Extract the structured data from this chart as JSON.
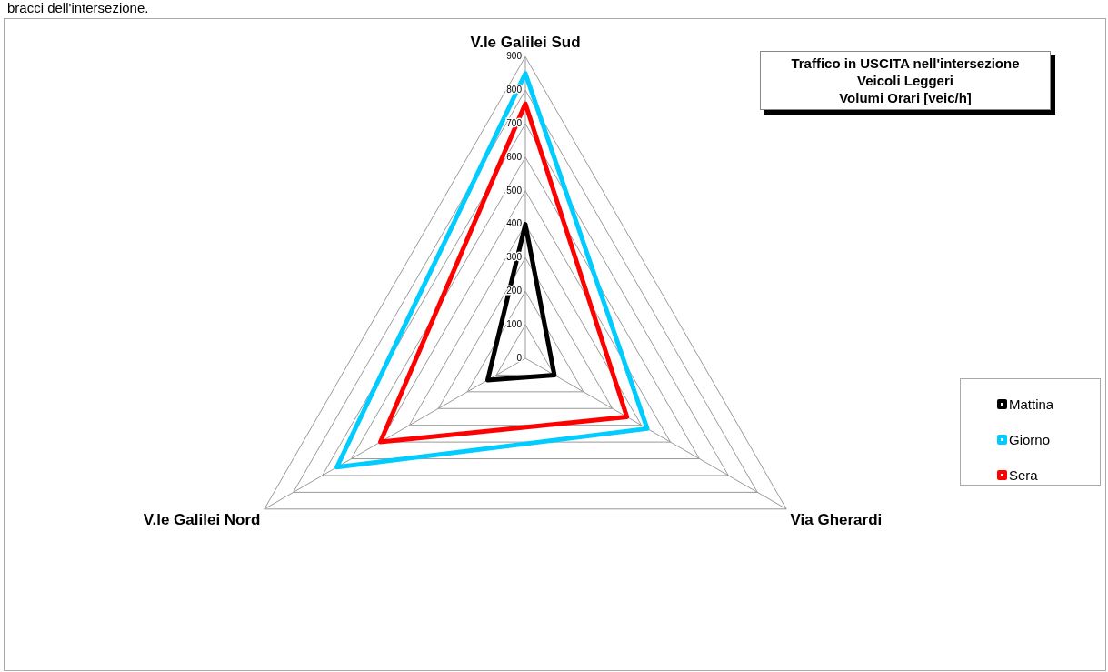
{
  "chart_data": {
    "type": "radar",
    "title": "Traffico in USCITA nell'intersezione\nVeicoli Leggeri\nVolumi Orari [veic/h]",
    "categories": [
      "V.le Galilei Sud",
      "Via Gherardi",
      "V.le Galilei Nord"
    ],
    "series": [
      {
        "name": "Mattina",
        "color": "#000000",
        "values": [
          400,
          100,
          130
        ]
      },
      {
        "name": "Giorno",
        "color": "#00ccff",
        "values": [
          850,
          420,
          650
        ]
      },
      {
        "name": "Sera",
        "color": "#ff0000",
        "values": [
          760,
          350,
          500
        ]
      }
    ],
    "ylim": [
      0,
      900
    ],
    "yticks": [
      0,
      100,
      200,
      300,
      400,
      500,
      600,
      700,
      800,
      900
    ],
    "grid": true,
    "legend": "right",
    "marker": "none",
    "annotations": [
      "bracci dell'intersezione."
    ]
  }
}
